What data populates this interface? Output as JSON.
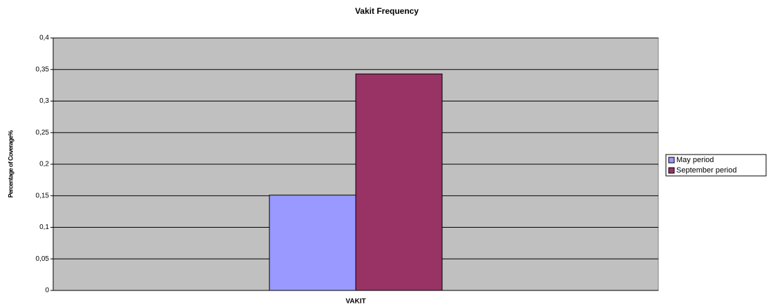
{
  "chart_data": {
    "type": "bar",
    "title": "Vakit Frequency",
    "x_label": "VAKIT",
    "y_label": "Percentage of Coverage%",
    "categories": [
      "VAKIT"
    ],
    "series": [
      {
        "name": "May period",
        "color": "#9999ff",
        "values": [
          0.151
        ]
      },
      {
        "name": "September period",
        "color": "#993366",
        "values": [
          0.343
        ]
      }
    ],
    "ylim": [
      0,
      0.4
    ],
    "yticks": [
      0,
      {
        "value": 0.05,
        "label": "0,05"
      },
      {
        "value": 0.1,
        "label": "0,1"
      },
      {
        "value": 0.15,
        "label": "0,15"
      },
      {
        "value": 0.2,
        "label": "0,2"
      },
      {
        "value": 0.25,
        "label": "0,25"
      },
      {
        "value": 0.3,
        "label": "0,3"
      },
      {
        "value": 0.35,
        "label": "0,35"
      },
      {
        "value": 0.4,
        "label": "0,4"
      }
    ],
    "grid": true,
    "legend": "right",
    "plot_background": "#c0c0c0"
  }
}
